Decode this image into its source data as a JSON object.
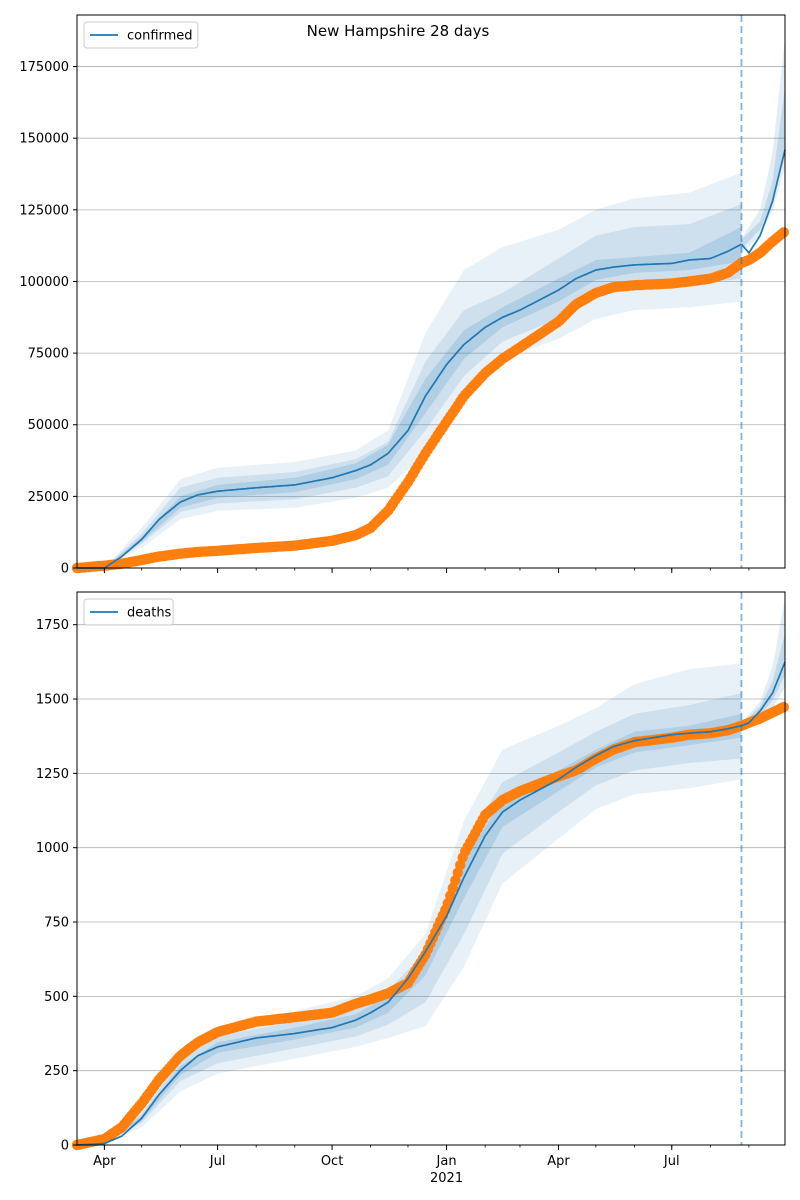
{
  "chart_data": [
    {
      "type": "line",
      "title": "New Hampshire 28 days",
      "xlabel": "",
      "ylabel": "",
      "x_range": [
        "2020-03-10",
        "2021-09-30"
      ],
      "ylim": [
        0,
        193000
      ],
      "yticks": [
        0,
        25000,
        50000,
        75000,
        100000,
        125000,
        150000,
        175000
      ],
      "ytick_labels": [
        "0",
        "25000",
        "50000",
        "75000",
        "100000",
        "125000",
        "150000",
        "175000"
      ],
      "grid": "horizontal",
      "legend": {
        "position": "top-left",
        "entries": [
          "confirmed"
        ]
      },
      "forecast_start": "2021-08-26",
      "series": [
        {
          "name": "confirmed",
          "kind": "model-median",
          "color": "#1f77b4",
          "x": [
            "2020-03-10",
            "2020-04-01",
            "2020-04-15",
            "2020-05-01",
            "2020-05-15",
            "2020-06-01",
            "2020-06-15",
            "2020-07-01",
            "2020-08-01",
            "2020-09-01",
            "2020-10-01",
            "2020-10-20",
            "2020-11-01",
            "2020-11-15",
            "2020-12-01",
            "2020-12-15",
            "2021-01-01",
            "2021-01-15",
            "2021-02-01",
            "2021-02-15",
            "2021-03-01",
            "2021-04-01",
            "2021-04-15",
            "2021-05-01",
            "2021-05-15",
            "2021-06-01",
            "2021-07-01",
            "2021-07-15",
            "2021-08-01",
            "2021-08-15",
            "2021-08-26",
            "2021-09-01",
            "2021-09-10",
            "2021-09-20",
            "2021-09-30"
          ],
          "values": [
            0,
            0,
            4000,
            10000,
            17000,
            23000,
            25500,
            26800,
            28000,
            29000,
            31500,
            34000,
            36000,
            40000,
            48000,
            60000,
            71000,
            78000,
            84000,
            87500,
            90000,
            97000,
            101000,
            104000,
            105000,
            105800,
            106300,
            107500,
            108000,
            110500,
            113000,
            110000,
            116000,
            128000,
            146000
          ]
        },
        {
          "name": "",
          "kind": "observed",
          "color": "#ff7f0e",
          "x": [
            "2020-03-10",
            "2020-04-01",
            "2020-04-15",
            "2020-05-01",
            "2020-05-15",
            "2020-06-01",
            "2020-06-15",
            "2020-07-01",
            "2020-08-01",
            "2020-09-01",
            "2020-10-01",
            "2020-10-20",
            "2020-11-01",
            "2020-11-15",
            "2020-12-01",
            "2020-12-15",
            "2021-01-01",
            "2021-01-15",
            "2021-02-01",
            "2021-02-15",
            "2021-03-01",
            "2021-04-01",
            "2021-04-15",
            "2021-05-01",
            "2021-05-15",
            "2021-06-01",
            "2021-07-01",
            "2021-07-15",
            "2021-08-01",
            "2021-08-15",
            "2021-08-26",
            "2021-09-01",
            "2021-09-10",
            "2021-09-20",
            "2021-09-30"
          ],
          "values": [
            0,
            800,
            1500,
            2800,
            4000,
            5000,
            5600,
            6000,
            7000,
            7800,
            9500,
            11500,
            14000,
            20000,
            30000,
            40000,
            51000,
            60000,
            68000,
            73000,
            77000,
            86000,
            92000,
            96000,
            98000,
            98700,
            99300,
            100000,
            101000,
            103000,
            106500,
            107500,
            110000,
            114000,
            117500
          ]
        }
      ],
      "bands": [
        {
          "x": [
            "2020-03-10",
            "2020-04-01",
            "2020-05-01",
            "2020-06-01",
            "2020-07-01",
            "2020-09-01",
            "2020-10-20",
            "2020-11-15",
            "2020-12-15",
            "2021-01-15",
            "2021-02-15",
            "2021-04-01",
            "2021-05-01",
            "2021-06-01",
            "2021-07-15",
            "2021-08-26"
          ],
          "lower": [
            0,
            0,
            7000,
            17000,
            20000,
            21000,
            24500,
            28000,
            40000,
            60000,
            73000,
            80000,
            87000,
            90000,
            91000,
            93000
          ],
          "upper": [
            0,
            0,
            14000,
            31000,
            35000,
            37000,
            41000,
            48000,
            82000,
            104000,
            112000,
            118000,
            125000,
            129000,
            131000,
            138000
          ]
        },
        {
          "x": [
            "2020-03-10",
            "2020-04-01",
            "2020-05-01",
            "2020-06-01",
            "2020-07-01",
            "2020-09-01",
            "2020-10-20",
            "2020-11-15",
            "2020-12-15",
            "2021-01-15",
            "2021-02-15",
            "2021-04-01",
            "2021-05-01",
            "2021-06-01",
            "2021-07-15",
            "2021-08-26"
          ],
          "lower": [
            0,
            0,
            8500,
            19500,
            22500,
            24000,
            28000,
            32000,
            48000,
            67000,
            79000,
            87000,
            95000,
            98000,
            98500,
            101000
          ],
          "upper": [
            0,
            0,
            12000,
            28000,
            31500,
            33500,
            38000,
            44000,
            72000,
            90000,
            96000,
            108000,
            116000,
            119000,
            120000,
            127000
          ]
        },
        {
          "x": [
            "2020-03-10",
            "2020-04-01",
            "2020-05-01",
            "2020-06-01",
            "2020-07-01",
            "2020-09-01",
            "2020-10-20",
            "2020-11-15",
            "2020-12-15",
            "2021-01-15",
            "2021-02-15",
            "2021-04-01",
            "2021-05-01",
            "2021-06-01",
            "2021-07-15",
            "2021-08-26"
          ],
          "lower": [
            0,
            0,
            9200,
            21000,
            24500,
            26500,
            31000,
            36000,
            54000,
            73000,
            84000,
            93000,
            100500,
            103000,
            104000,
            107000
          ],
          "upper": [
            0,
            0,
            10800,
            25000,
            29000,
            31500,
            36500,
            43000,
            66000,
            83000,
            91000,
            101000,
            107500,
            108500,
            110000,
            119000
          ]
        }
      ],
      "forecast_bands": [
        {
          "x": [
            "2021-08-26",
            "2021-09-10",
            "2021-09-20",
            "2021-09-30"
          ],
          "lower": [
            110000,
            116000,
            125000,
            140000
          ],
          "upper": [
            115000,
            125000,
            145000,
            185000
          ]
        },
        {
          "x": [
            "2021-08-26",
            "2021-09-10",
            "2021-09-20",
            "2021-09-30"
          ],
          "lower": [
            111500,
            118000,
            128000,
            146000
          ],
          "upper": [
            114500,
            121000,
            135000,
            168000
          ]
        }
      ]
    },
    {
      "type": "line",
      "title": "",
      "xlabel": "",
      "ylabel": "",
      "x_range": [
        "2020-03-10",
        "2021-09-30"
      ],
      "ylim": [
        0,
        1860
      ],
      "yticks": [
        0,
        250,
        500,
        750,
        1000,
        1250,
        1500,
        1750
      ],
      "ytick_labels": [
        "0",
        "250",
        "500",
        "750",
        "1000",
        "1250",
        "1500",
        "1750"
      ],
      "xtick_labels": [
        "Apr",
        "Jul",
        "Oct",
        "Jan",
        "Apr",
        "Jul"
      ],
      "xtick_dates": [
        "2020-04-01",
        "2020-07-01",
        "2020-10-01",
        "2021-01-01",
        "2021-04-01",
        "2021-07-01"
      ],
      "xtick_year_label": "2021",
      "grid": "horizontal",
      "legend": {
        "position": "top-left",
        "entries": [
          "deaths"
        ]
      },
      "forecast_start": "2021-08-26",
      "series": [
        {
          "name": "deaths",
          "kind": "model-median",
          "color": "#1f77b4",
          "x": [
            "2020-03-10",
            "2020-04-01",
            "2020-04-15",
            "2020-05-01",
            "2020-05-15",
            "2020-06-01",
            "2020-06-15",
            "2020-07-01",
            "2020-08-01",
            "2020-09-01",
            "2020-10-01",
            "2020-10-20",
            "2020-11-01",
            "2020-11-15",
            "2020-12-01",
            "2020-12-15",
            "2021-01-01",
            "2021-01-15",
            "2021-02-01",
            "2021-02-15",
            "2021-03-01",
            "2021-04-01",
            "2021-04-15",
            "2021-05-01",
            "2021-05-15",
            "2021-06-01",
            "2021-07-01",
            "2021-07-15",
            "2021-08-01",
            "2021-08-15",
            "2021-08-26",
            "2021-09-01",
            "2021-09-10",
            "2021-09-20",
            "2021-09-30"
          ],
          "values": [
            0,
            5,
            30,
            90,
            170,
            250,
            300,
            330,
            360,
            375,
            395,
            420,
            445,
            480,
            560,
            650,
            770,
            900,
            1040,
            1120,
            1160,
            1230,
            1270,
            1310,
            1340,
            1360,
            1380,
            1385,
            1390,
            1400,
            1410,
            1420,
            1460,
            1520,
            1625
          ]
        },
        {
          "name": "",
          "kind": "observed",
          "color": "#ff7f0e",
          "x": [
            "2020-03-10",
            "2020-04-01",
            "2020-04-15",
            "2020-05-01",
            "2020-05-15",
            "2020-06-01",
            "2020-06-15",
            "2020-07-01",
            "2020-08-01",
            "2020-09-01",
            "2020-10-01",
            "2020-10-20",
            "2020-11-01",
            "2020-11-15",
            "2020-12-01",
            "2020-12-15",
            "2021-01-01",
            "2021-01-15",
            "2021-02-01",
            "2021-02-15",
            "2021-03-01",
            "2021-04-01",
            "2021-04-15",
            "2021-05-01",
            "2021-05-15",
            "2021-06-01",
            "2021-07-01",
            "2021-07-15",
            "2021-08-01",
            "2021-08-15",
            "2021-08-26",
            "2021-09-01",
            "2021-09-10",
            "2021-09-20",
            "2021-09-30"
          ],
          "values": [
            0,
            20,
            60,
            140,
            220,
            300,
            345,
            380,
            415,
            430,
            445,
            475,
            490,
            510,
            545,
            640,
            800,
            980,
            1110,
            1160,
            1190,
            1240,
            1260,
            1300,
            1330,
            1355,
            1370,
            1380,
            1385,
            1395,
            1410,
            1420,
            1435,
            1455,
            1475
          ]
        }
      ],
      "bands": [
        {
          "x": [
            "2020-03-10",
            "2020-04-01",
            "2020-05-01",
            "2020-06-01",
            "2020-07-01",
            "2020-09-01",
            "2020-10-20",
            "2020-11-15",
            "2020-12-15",
            "2021-01-15",
            "2021-02-15",
            "2021-04-01",
            "2021-05-01",
            "2021-06-01",
            "2021-07-15",
            "2021-08-26"
          ],
          "lower": [
            0,
            3,
            60,
            180,
            240,
            290,
            330,
            360,
            400,
            600,
            880,
            1030,
            1130,
            1180,
            1200,
            1230
          ],
          "upper": [
            0,
            8,
            120,
            320,
            400,
            450,
            500,
            560,
            710,
            1090,
            1330,
            1410,
            1470,
            1550,
            1600,
            1620
          ]
        },
        {
          "x": [
            "2020-03-10",
            "2020-04-01",
            "2020-05-01",
            "2020-06-01",
            "2020-07-01",
            "2020-09-01",
            "2020-10-20",
            "2020-11-15",
            "2020-12-15",
            "2021-01-15",
            "2021-02-15",
            "2021-04-01",
            "2021-05-01",
            "2021-06-01",
            "2021-07-15",
            "2021-08-26"
          ],
          "lower": [
            0,
            4,
            75,
            215,
            275,
            325,
            365,
            405,
            480,
            710,
            980,
            1120,
            1210,
            1260,
            1285,
            1300
          ],
          "upper": [
            0,
            7,
            105,
            285,
            365,
            415,
            460,
            520,
            650,
            1010,
            1220,
            1320,
            1390,
            1450,
            1480,
            1520
          ]
        },
        {
          "x": [
            "2020-03-10",
            "2020-04-01",
            "2020-05-01",
            "2020-06-01",
            "2020-07-01",
            "2020-09-01",
            "2020-10-20",
            "2020-11-15",
            "2020-12-15",
            "2021-01-15",
            "2021-02-15",
            "2021-04-01",
            "2021-05-01",
            "2021-06-01",
            "2021-07-15",
            "2021-08-26"
          ],
          "lower": [
            0,
            4.5,
            82,
            235,
            310,
            355,
            395,
            445,
            570,
            830,
            1070,
            1190,
            1270,
            1320,
            1345,
            1370
          ],
          "upper": [
            0,
            5.5,
            98,
            265,
            345,
            395,
            440,
            500,
            620,
            960,
            1160,
            1260,
            1330,
            1390,
            1410,
            1450
          ]
        }
      ],
      "forecast_bands": [
        {
          "x": [
            "2021-08-26",
            "2021-09-10",
            "2021-09-20",
            "2021-09-30"
          ],
          "lower": [
            1400,
            1430,
            1470,
            1540
          ],
          "upper": [
            1420,
            1490,
            1610,
            1840
          ]
        },
        {
          "x": [
            "2021-08-26",
            "2021-09-10",
            "2021-09-20",
            "2021-09-30"
          ],
          "lower": [
            1405,
            1445,
            1495,
            1580
          ],
          "upper": [
            1415,
            1475,
            1560,
            1720
          ]
        }
      ]
    }
  ]
}
